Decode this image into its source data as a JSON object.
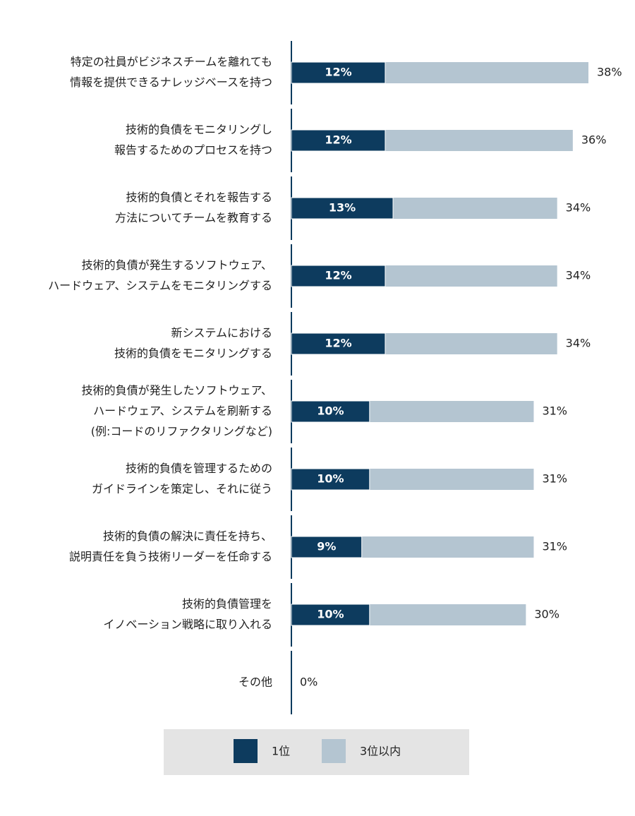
{
  "chart_data": {
    "type": "overlap-bar",
    "categories": [
      [
        "特定の社員がビジネスチームを離れても",
        "情報を提供できるナレッジベースを持つ"
      ],
      [
        "技術的負債をモニタリングし",
        "報告するためのプロセスを持つ"
      ],
      [
        "技術的負債とそれを報告する",
        "方法についてチームを教育する"
      ],
      [
        "技術的負債が発生するソフトウェア、",
        "ハードウェア、システムをモニタリングする"
      ],
      [
        "新システムにおける",
        "技術的負債をモニタリングする"
      ],
      [
        "技術的負債が発生したソフトウェア、",
        "ハードウェア、システムを刷新する",
        "(例:コードのリファクタリングなど)"
      ],
      [
        "技術的負債を管理するための",
        "ガイドラインを策定し、それに従う"
      ],
      [
        "技術的負債の解決に責任を持ち、",
        "説明責任を負う技術リーダーを任命する"
      ],
      [
        "技術的負債管理を",
        "イノベーション戦略に取り入れる"
      ],
      [
        "その他"
      ]
    ],
    "series": [
      {
        "name": "1位",
        "color": "#0d3b5e",
        "values": [
          12,
          12,
          13,
          12,
          12,
          10,
          10,
          9,
          10,
          0
        ],
        "value_labels": [
          "12%",
          "12%",
          "13%",
          "12%",
          "12%",
          "10%",
          "10%",
          "9%",
          "10%",
          null
        ]
      },
      {
        "name": "3位以内",
        "color": "#b4c5d1",
        "values": [
          38,
          36,
          34,
          34,
          34,
          31,
          31,
          31,
          30,
          0
        ],
        "value_labels": [
          "38%",
          "36%",
          "34%",
          "34%",
          "34%",
          "31%",
          "31%",
          "31%",
          "30%",
          "0%"
        ]
      }
    ]
  }
}
